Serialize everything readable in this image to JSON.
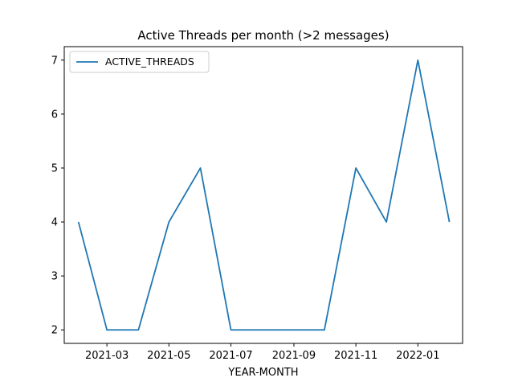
{
  "chart_data": {
    "type": "line",
    "title": "Active Threads per month (>2 messages)",
    "xlabel": "YEAR-MONTH",
    "ylabel": "",
    "x": [
      "2021-02-01",
      "2021-03-01",
      "2021-04-01",
      "2021-05-01",
      "2021-06-01",
      "2021-07-01",
      "2021-08-01",
      "2021-09-01",
      "2021-10-01",
      "2021-11-01",
      "2021-12-01",
      "2022-01-01",
      "2022-02-01"
    ],
    "series": [
      {
        "name": "ACTIVE_THREADS",
        "values": [
          4,
          2,
          2,
          4,
          5,
          2,
          2,
          2,
          2,
          5,
          4,
          7,
          4
        ],
        "color": "#1f77b4"
      }
    ],
    "x_ticks": [
      "2021-03",
      "2021-05",
      "2021-07",
      "2021-09",
      "2021-11",
      "2022-01"
    ],
    "y_ticks": [
      2,
      3,
      4,
      5,
      6,
      7
    ],
    "ylim": [
      1.75,
      7.25
    ],
    "xlim": [
      "2021-01-18",
      "2022-02-14"
    ],
    "grid": false,
    "legend": "upper-left"
  }
}
